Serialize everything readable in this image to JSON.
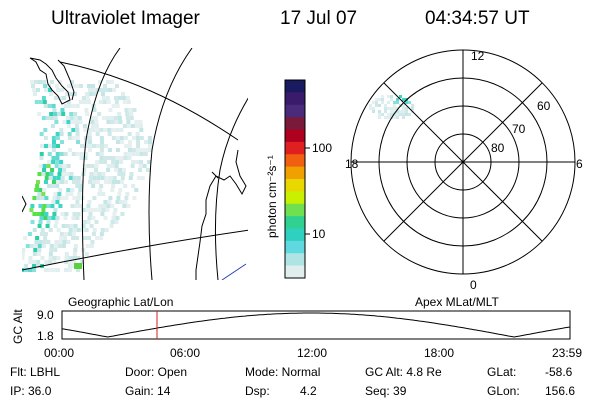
{
  "header": {
    "title": "Ultraviolet Imager",
    "date": "17 Jul 07",
    "time": "04:34:57 UT"
  },
  "geo_panel": {
    "label": "Geographic Lat/Lon"
  },
  "colorbar": {
    "unit_label": "photon cm⁻²s⁻¹",
    "ticks": [
      "100",
      "10"
    ],
    "colors": [
      "#1a1a60",
      "#3a1a6a",
      "#4a2a7a",
      "#7a1a3a",
      "#b00020",
      "#e02020",
      "#f06010",
      "#f0a000",
      "#e8d800",
      "#c8f000",
      "#70e050",
      "#30d090",
      "#30d0c0",
      "#60d8e0",
      "#b0e4e4",
      "#e0eeee"
    ]
  },
  "polar_panel": {
    "label": "Apex MLat/MLT",
    "mlt_labels": [
      "12",
      "18",
      "6",
      "0"
    ],
    "lat_labels": [
      "60",
      "70",
      "80"
    ]
  },
  "altitude_plot": {
    "ylabel": "GC Alt",
    "ytick_labels": [
      "9.0",
      "1.8"
    ],
    "xtick_labels": [
      "00:00",
      "06:00",
      "12:00",
      "18:00",
      "23:59"
    ],
    "cursor_color": "#cc2020"
  },
  "info": {
    "flt": "Flt: LBHL",
    "ip": "IP: 36.0",
    "door": "Door: Open",
    "gain": "Gain: 14",
    "mode": "Mode: Normal",
    "dsp_label": "Dsp:",
    "dsp_value": "4.2",
    "gc_alt": "GC Alt: 4.8 Re",
    "seq": "Seq: 39",
    "glat_label": "GLat:",
    "glat_value": "-58.6",
    "glon_label": "GLon:",
    "glon_value": "156.6"
  }
}
